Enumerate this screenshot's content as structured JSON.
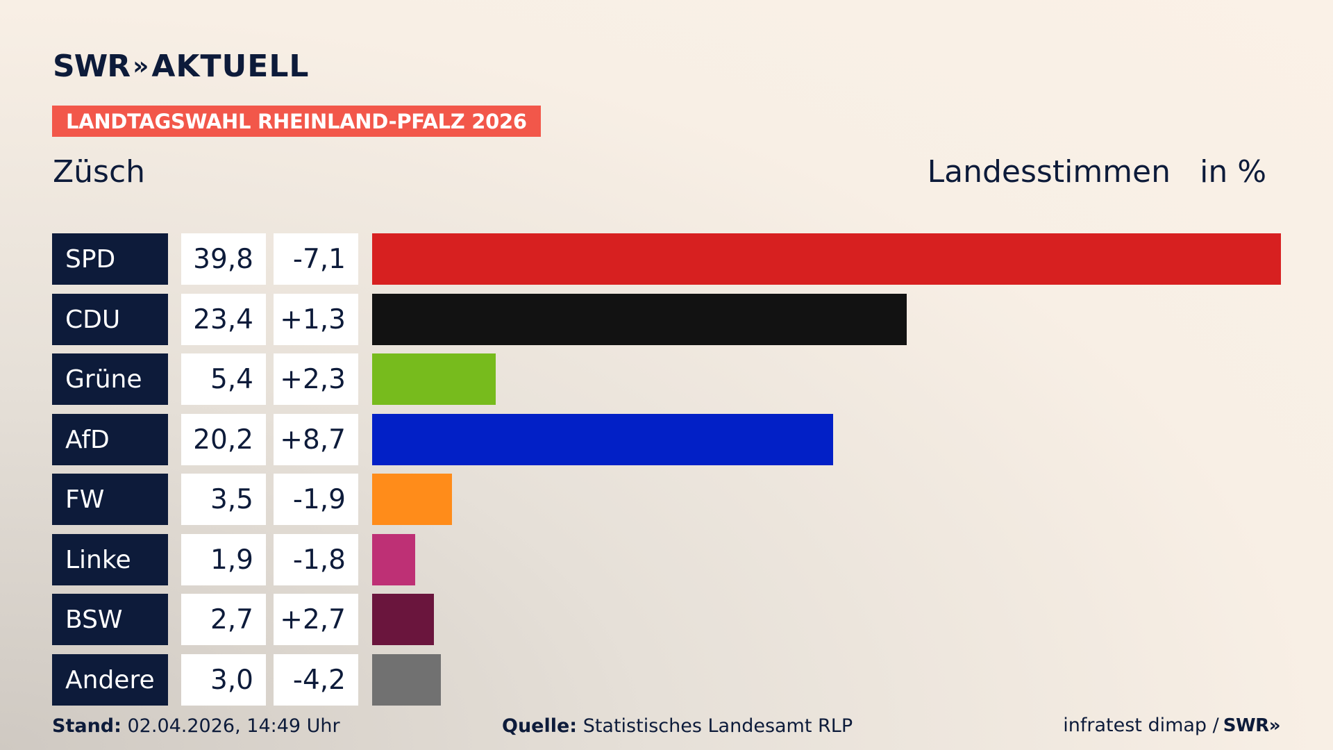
{
  "header": {
    "brand": "SWR",
    "brand_chevrons": "»",
    "brand_suffix": "AKTUELL",
    "badge": "LANDTAGSWAHL RHEINLAND-PFALZ 2026",
    "place": "Züsch",
    "measure": "Landesstimmen",
    "unit": "in %"
  },
  "chart_data": {
    "type": "bar",
    "orientation": "horizontal",
    "title": "Züsch",
    "xlim": [
      0,
      39.8
    ],
    "grid": false,
    "categories": [
      "SPD",
      "CDU",
      "Grüne",
      "AfD",
      "FW",
      "Linke",
      "BSW",
      "Andere"
    ],
    "values": [
      39.8,
      23.4,
      5.4,
      20.2,
      3.5,
      1.9,
      2.7,
      3.0
    ],
    "value_labels": [
      "39,8",
      "23,4",
      "5,4",
      "20,2",
      "3,5",
      "1,9",
      "2,7",
      "3,0"
    ],
    "diff_labels": [
      "-7,1",
      "+1,3",
      "+2,3",
      "+8,7",
      "-1,9",
      "-1,8",
      "+2,7",
      "-4,2"
    ],
    "colors": [
      "#d72020",
      "#121212",
      "#77bb1d",
      "#0220c6",
      "#ff8c1a",
      "#be3075",
      "#6a153d",
      "#717171"
    ]
  },
  "footer": {
    "stand_label": "Stand:",
    "stand_value": " 02.04.2026, 14:49 Uhr",
    "source_label": "Quelle:",
    "source_value": " Statistisches Landesamt RLP",
    "credit": "infratest dimap /",
    "credit_brand": "SWR»"
  }
}
